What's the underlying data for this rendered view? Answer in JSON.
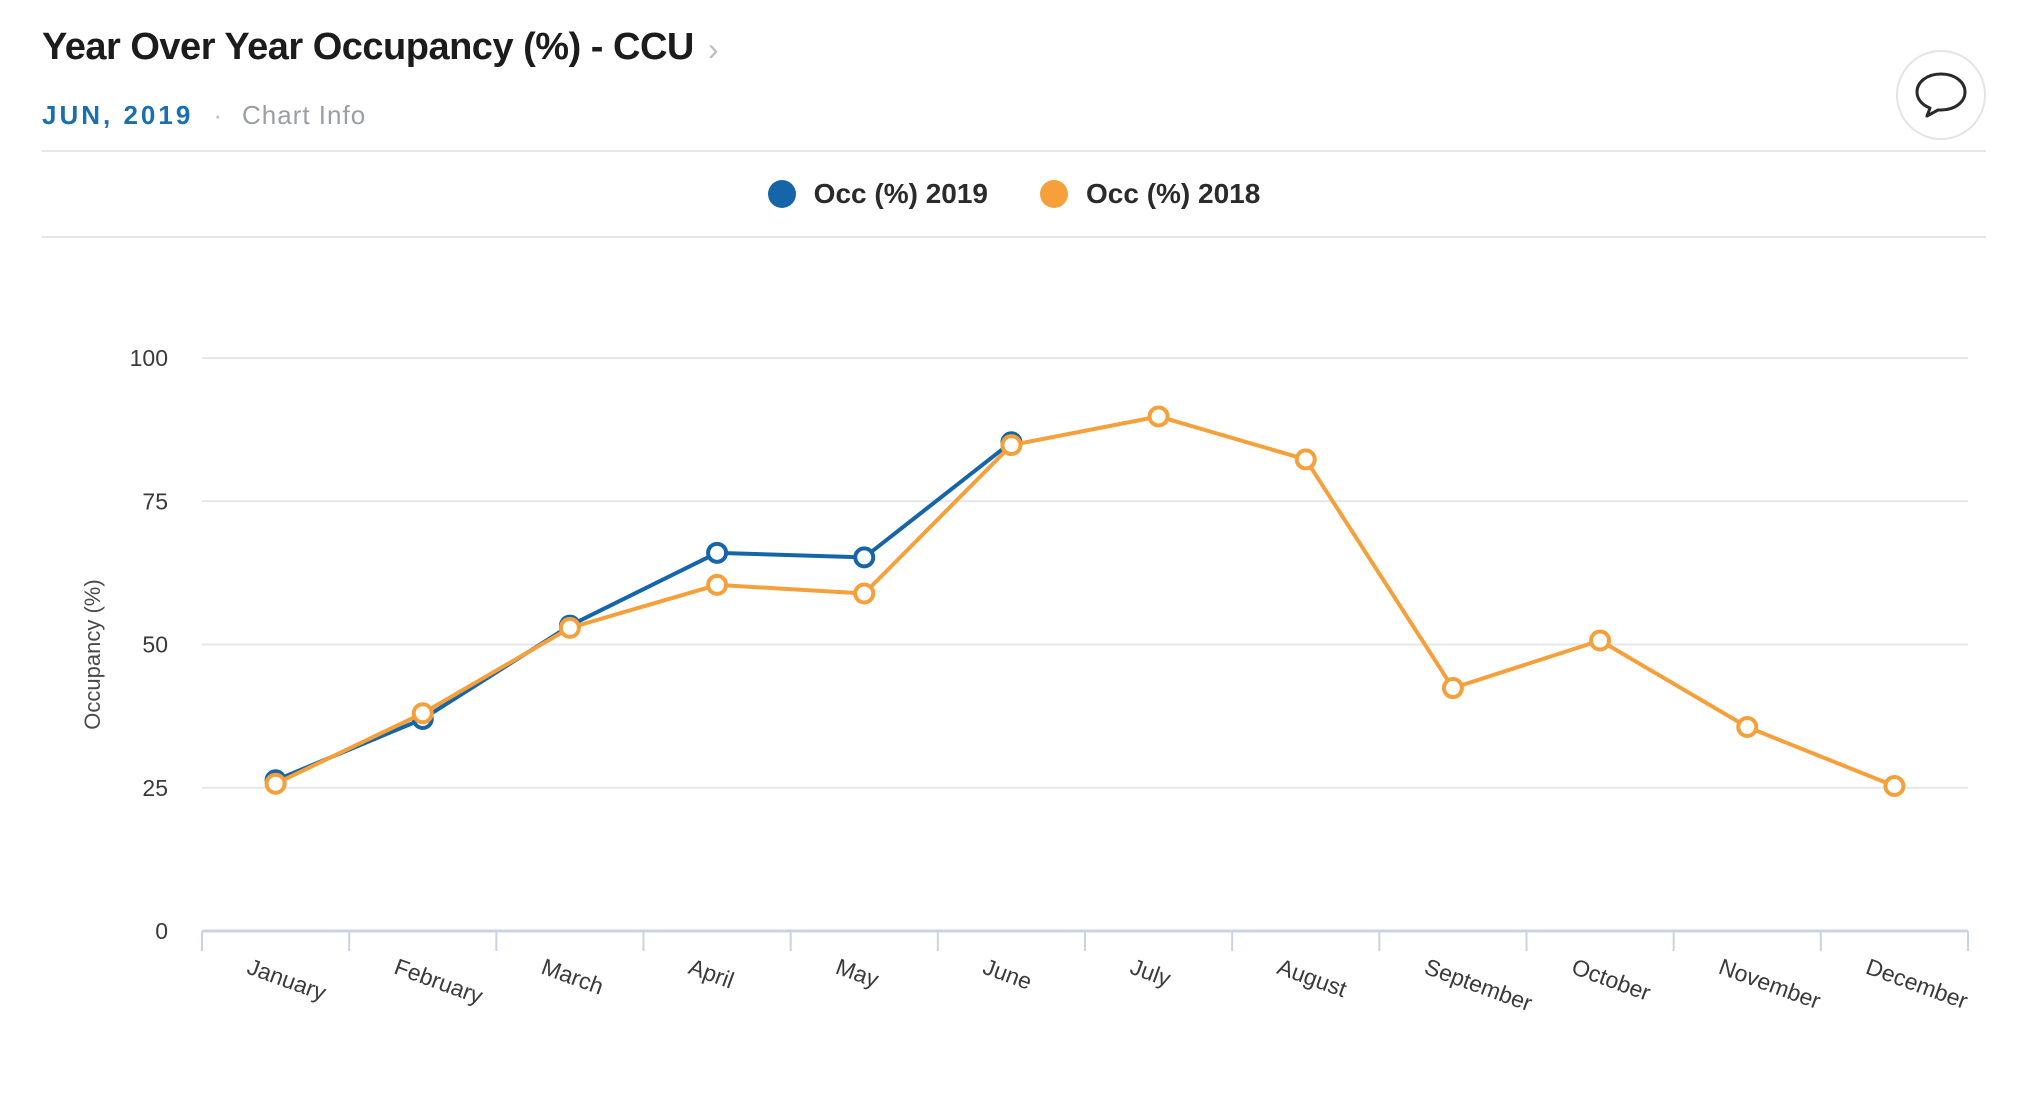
{
  "header": {
    "title": "Year Over Year Occupancy (%) - CCU",
    "chevron": "›",
    "date_label": "JUN, 2019",
    "separator": "·",
    "chart_info_label": "Chart Info",
    "comment_icon": "speech-bubble-icon"
  },
  "colors": {
    "series_2019": "#1565a8",
    "series_2018": "#f5a03a",
    "grid": "#e4e7eb",
    "axis": "#c9d3e6"
  },
  "chart_data": {
    "type": "line",
    "title": "Year Over Year Occupancy (%) - CCU",
    "xlabel": "",
    "ylabel": "Occupancy (%)",
    "ylim": [
      0,
      100
    ],
    "yticks": [
      0,
      25,
      50,
      75,
      100
    ],
    "grid": true,
    "legend_position": "top-center",
    "categories": [
      "January",
      "February",
      "March",
      "April",
      "May",
      "June",
      "July",
      "August",
      "September",
      "October",
      "November",
      "December"
    ],
    "series": [
      {
        "name": "Occ (%) 2019",
        "color": "#1565a8",
        "values": [
          26.3,
          37.0,
          53.3,
          66.0,
          65.2,
          85.3,
          null,
          null,
          null,
          null,
          null,
          null
        ]
      },
      {
        "name": "Occ (%) 2018",
        "color": "#f5a03a",
        "values": [
          25.7,
          38.0,
          52.9,
          60.4,
          58.9,
          84.8,
          89.8,
          82.3,
          42.4,
          50.7,
          35.6,
          25.3
        ]
      }
    ]
  }
}
